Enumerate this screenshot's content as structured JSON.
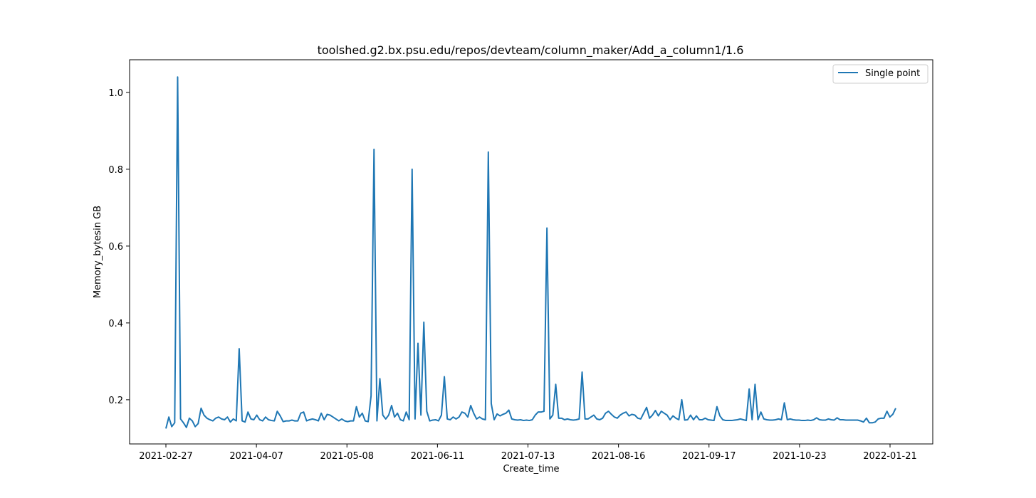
{
  "chart_data": {
    "type": "line",
    "title": "toolshed.g2.bx.psu.edu/repos/devteam/column_maker/Add_a_column1/1.6",
    "xlabel": "Create_time",
    "ylabel": "Memory_bytesin GB",
    "x_tick_labels": [
      "2021-02-27",
      "2021-04-07",
      "2021-05-08",
      "2021-06-11",
      "2021-07-13",
      "2021-08-16",
      "2021-09-17",
      "2021-10-23",
      "2022-01-21"
    ],
    "y_ticks": [
      0.2,
      0.4,
      0.6,
      0.8,
      1.0
    ],
    "y_tick_labels": [
      "0.2",
      "0.4",
      "0.6",
      "0.8",
      "1.0"
    ],
    "ylim": [
      0.085,
      1.085
    ],
    "grid": false,
    "legend_position": "top-right",
    "series_color": "#1f77b4",
    "series": [
      {
        "name": "Single point",
        "values": [
          0.125,
          0.155,
          0.13,
          0.14,
          1.04,
          0.15,
          0.14,
          0.128,
          0.152,
          0.145,
          0.13,
          0.138,
          0.178,
          0.16,
          0.152,
          0.148,
          0.145,
          0.152,
          0.155,
          0.15,
          0.148,
          0.155,
          0.142,
          0.15,
          0.145,
          0.333,
          0.145,
          0.142,
          0.168,
          0.15,
          0.148,
          0.16,
          0.148,
          0.145,
          0.155,
          0.148,
          0.146,
          0.145,
          0.17,
          0.158,
          0.143,
          0.145,
          0.145,
          0.147,
          0.145,
          0.145,
          0.165,
          0.168,
          0.145,
          0.148,
          0.15,
          0.148,
          0.145,
          0.165,
          0.148,
          0.162,
          0.16,
          0.155,
          0.15,
          0.145,
          0.15,
          0.145,
          0.143,
          0.145,
          0.145,
          0.182,
          0.155,
          0.165,
          0.145,
          0.143,
          0.21,
          0.852,
          0.145,
          0.255,
          0.16,
          0.15,
          0.16,
          0.185,
          0.155,
          0.165,
          0.148,
          0.145,
          0.168,
          0.148,
          0.8,
          0.15,
          0.347,
          0.16,
          0.402,
          0.17,
          0.145,
          0.147,
          0.148,
          0.145,
          0.16,
          0.26,
          0.15,
          0.148,
          0.155,
          0.15,
          0.155,
          0.168,
          0.165,
          0.155,
          0.185,
          0.165,
          0.15,
          0.155,
          0.15,
          0.148,
          0.845,
          0.19,
          0.148,
          0.163,
          0.158,
          0.162,
          0.165,
          0.173,
          0.15,
          0.148,
          0.147,
          0.148,
          0.146,
          0.147,
          0.146,
          0.148,
          0.16,
          0.168,
          0.168,
          0.17,
          0.647,
          0.15,
          0.16,
          0.24,
          0.152,
          0.152,
          0.148,
          0.15,
          0.148,
          0.147,
          0.148,
          0.15,
          0.272,
          0.15,
          0.15,
          0.155,
          0.16,
          0.15,
          0.148,
          0.152,
          0.165,
          0.17,
          0.162,
          0.155,
          0.152,
          0.16,
          0.165,
          0.168,
          0.158,
          0.162,
          0.16,
          0.152,
          0.15,
          0.165,
          0.18,
          0.152,
          0.16,
          0.172,
          0.158,
          0.17,
          0.165,
          0.16,
          0.148,
          0.158,
          0.152,
          0.148,
          0.2,
          0.147,
          0.148,
          0.16,
          0.148,
          0.158,
          0.148,
          0.148,
          0.152,
          0.148,
          0.147,
          0.146,
          0.182,
          0.158,
          0.148,
          0.146,
          0.146,
          0.146,
          0.147,
          0.148,
          0.15,
          0.148,
          0.146,
          0.228,
          0.148,
          0.24,
          0.148,
          0.168,
          0.15,
          0.148,
          0.147,
          0.147,
          0.148,
          0.15,
          0.148,
          0.192,
          0.148,
          0.15,
          0.148,
          0.147,
          0.147,
          0.146,
          0.146,
          0.147,
          0.146,
          0.148,
          0.153,
          0.148,
          0.147,
          0.147,
          0.15,
          0.148,
          0.147,
          0.153,
          0.148,
          0.148,
          0.147,
          0.147,
          0.147,
          0.147,
          0.147,
          0.145,
          0.142,
          0.152,
          0.14,
          0.14,
          0.142,
          0.15,
          0.152,
          0.152,
          0.17,
          0.155,
          0.162,
          0.178
        ]
      }
    ]
  }
}
